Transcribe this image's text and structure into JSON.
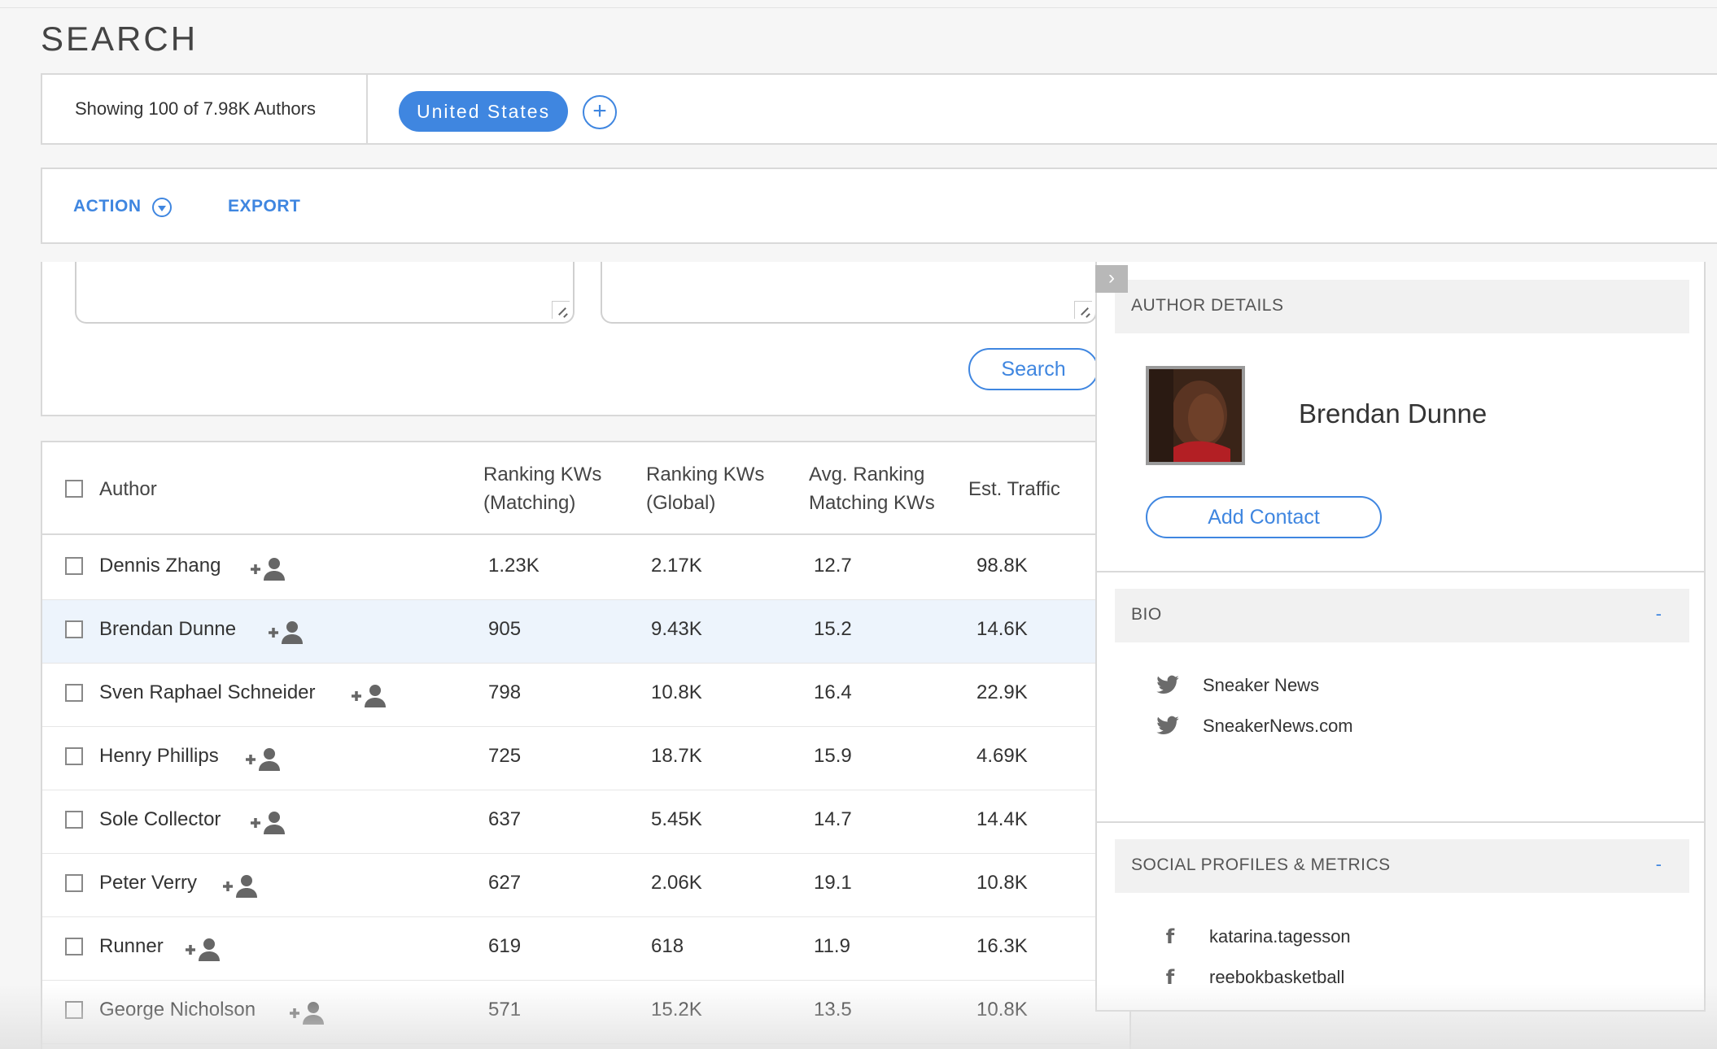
{
  "page": {
    "title": "SEARCH"
  },
  "filters": {
    "count_text": "Showing 100 of 7.98K Authors",
    "chips": [
      "United States"
    ],
    "add_symbol": "+"
  },
  "actions": {
    "action_label": "ACTION",
    "export_label": "EXPORT"
  },
  "search": {
    "button_label": "Search"
  },
  "table": {
    "headers": {
      "author": "Author",
      "kw_matching_1": "Ranking KWs",
      "kw_matching_2": "(Matching)",
      "kw_global_1": "Ranking KWs",
      "kw_global_2": "(Global)",
      "avg_1": "Avg. Ranking",
      "avg_2": "Matching KWs",
      "traffic": "Est. Traffic"
    },
    "rows": [
      {
        "author": "Dennis Zhang",
        "kw_matching": "1.23K",
        "kw_global": "2.17K",
        "avg_rank": "12.7",
        "traffic": "98.8K"
      },
      {
        "author": "Brendan Dunne",
        "kw_matching": "905",
        "kw_global": "9.43K",
        "avg_rank": "15.2",
        "traffic": "14.6K"
      },
      {
        "author": "Sven Raphael Schneider",
        "kw_matching": "798",
        "kw_global": "10.8K",
        "avg_rank": "16.4",
        "traffic": "22.9K"
      },
      {
        "author": "Henry Phillips",
        "kw_matching": "725",
        "kw_global": "18.7K",
        "avg_rank": "15.9",
        "traffic": "4.69K"
      },
      {
        "author": "Sole Collector",
        "kw_matching": "637",
        "kw_global": "5.45K",
        "avg_rank": "14.7",
        "traffic": "14.4K"
      },
      {
        "author": "Peter Verry",
        "kw_matching": "627",
        "kw_global": "2.06K",
        "avg_rank": "19.1",
        "traffic": "10.8K"
      },
      {
        "author": "Runner",
        "kw_matching": "619",
        "kw_global": "618",
        "avg_rank": "11.9",
        "traffic": "16.3K"
      },
      {
        "author": "George Nicholson",
        "kw_matching": "571",
        "kw_global": "15.2K",
        "avg_rank": "13.5",
        "traffic": "10.8K"
      }
    ]
  },
  "details": {
    "collapse_symbol": "›",
    "header": "AUTHOR DETAILS",
    "name": "Brendan Dunne",
    "add_contact_label": "Add Contact",
    "bio": {
      "header": "BIO",
      "toggle": "-",
      "items": [
        "Sneaker News",
        "SneakerNews.com"
      ]
    },
    "social": {
      "header": "SOCIAL PROFILES & METRICS",
      "toggle": "-",
      "items": [
        "katarina.tagesson",
        "reebokbasketball"
      ]
    }
  },
  "colors": {
    "accent": "#3f86e0",
    "highlight_row": "#edf4fc"
  },
  "icons": {
    "add_person": "add-person-icon",
    "twitter": "twitter-icon",
    "facebook": "facebook-icon"
  }
}
